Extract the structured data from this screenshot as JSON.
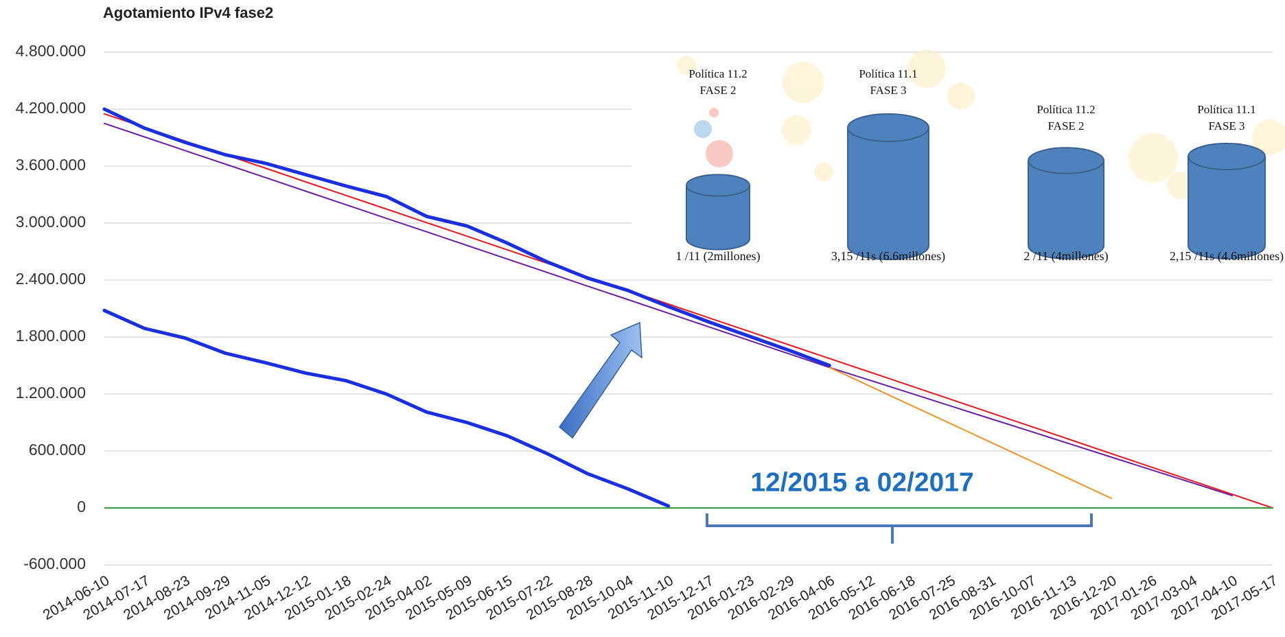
{
  "chart_data": {
    "type": "line",
    "title": "Agotamiento IPv4 fase2",
    "categories": [
      "2014-06-10",
      "2014-07-17",
      "2014-08-23",
      "2014-09-29",
      "2014-11-05",
      "2014-12-12",
      "2015-01-18",
      "2015-02-24",
      "2015-04-02",
      "2015-05-09",
      "2015-06-15",
      "2015-07-22",
      "2015-08-28",
      "2015-10-04",
      "2015-11-10",
      "2015-12-17",
      "2016-01-23",
      "2016-02-29",
      "2016-04-06",
      "2016-05-12",
      "2016-06-18",
      "2016-07-25",
      "2016-08-31",
      "2016-10-07",
      "2016-11-13",
      "2016-12-20",
      "2017-01-26",
      "2017-03-04",
      "2017-04-10",
      "2017-05-17"
    ],
    "series": [
      {
        "color": "#e8171f",
        "width": 2,
        "values": [
          4150000,
          4007000,
          3864000,
          3721000,
          3578000,
          3434000,
          3291000,
          3148000,
          3005000,
          2862000,
          2719000,
          2576000,
          2433000,
          2290000,
          2147000,
          2003000,
          1860000,
          1717000,
          1574000,
          1431000,
          1288000,
          1145000,
          1002000,
          859000,
          716000,
          572000,
          429000,
          286000,
          143000,
          0
        ]
      },
      {
        "color": "#6a1fa0",
        "width": 2,
        "values": [
          4050000,
          3907000,
          3764000,
          3622000,
          3479000,
          3336000,
          3193000,
          3050000,
          2908000,
          2765000,
          2622000,
          2479000,
          2336000,
          2194000,
          2051000,
          1908000,
          1765000,
          1622000,
          1480000,
          1345000,
          1210000,
          1075000,
          940000,
          805000,
          670000,
          535000,
          400000,
          265000,
          130000,
          null
        ]
      },
      {
        "color": "#f0922b",
        "width": 2,
        "values": [
          null,
          null,
          null,
          null,
          null,
          null,
          null,
          null,
          null,
          null,
          null,
          null,
          null,
          null,
          null,
          null,
          null,
          null,
          1480000,
          1283000,
          1086000,
          889000,
          692000,
          495000,
          298000,
          101000,
          null,
          null,
          null,
          null
        ]
      },
      {
        "color": "#1a2fe0",
        "width": 5,
        "values": [
          2080000,
          1890000,
          1790000,
          1630000,
          1530000,
          1420000,
          1340000,
          1200000,
          1010000,
          900000,
          760000,
          570000,
          360000,
          200000,
          20000,
          null,
          null,
          null,
          null,
          null,
          null,
          null,
          null,
          null,
          null,
          null,
          null,
          null,
          null,
          null
        ]
      },
      {
        "color": "#1a2fe0",
        "width": 5,
        "values": [
          4200000,
          4000000,
          3850000,
          3720000,
          3630000,
          3510000,
          3390000,
          3280000,
          3070000,
          2970000,
          2790000,
          2590000,
          2420000,
          2290000,
          2120000,
          1960000,
          1810000,
          1660000,
          1500000,
          null,
          null,
          null,
          null,
          null,
          null,
          null,
          null,
          null,
          null,
          null
        ]
      }
    ],
    "ylim": [
      -600000,
      4800000
    ],
    "yticks": [
      {
        "value": -600000,
        "label": "-600.000"
      },
      0,
      {
        "value": 600000,
        "label": "600.000"
      },
      {
        "value": 1200000,
        "label": "1.200.000"
      },
      {
        "value": 1800000,
        "label": "1.800.000"
      },
      {
        "value": 2400000,
        "label": "2.400.000"
      },
      {
        "value": 3000000,
        "label": "3.000.000"
      },
      {
        "value": 3600000,
        "label": "3.600.000"
      },
      {
        "value": 4200000,
        "label": "4.200.000"
      },
      {
        "value": 4800000,
        "label": "4.800.000"
      }
    ],
    "grid": true,
    "zero_line_color": "#3a9a3a",
    "range_label": "12/2015 a 02/2017"
  },
  "panels": [
    {
      "title": "Política 11.2",
      "subtitle": "FASE 2",
      "caption": "1 /11 (2millones)"
    },
    {
      "title": "Política 11.1",
      "subtitle": "FASE 3",
      "caption": "3,15 /11s (6.6millones)"
    },
    {
      "title": "Política 11.2",
      "subtitle": "FASE 2",
      "caption": "2 /11 (4millones)"
    },
    {
      "title": "Política 11.1",
      "subtitle": "FASE 3",
      "caption": "2,15 /11s (4.6millones)"
    }
  ]
}
